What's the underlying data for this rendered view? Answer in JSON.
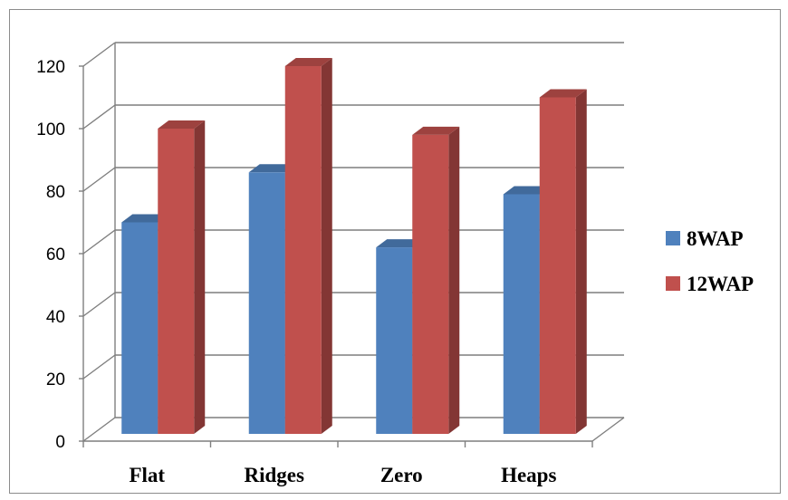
{
  "chart_data": {
    "type": "bar",
    "style": "3d-clustered-column",
    "categories": [
      "Flat",
      "Ridges",
      "Zero",
      "Heaps"
    ],
    "series": [
      {
        "name": "8WAP",
        "values": [
          70,
          86,
          62,
          79
        ],
        "color": "#4f81bd"
      },
      {
        "name": "12WAP",
        "values": [
          100,
          120,
          98,
          110
        ],
        "color": "#c0504d"
      }
    ],
    "title": "",
    "xlabel": "",
    "ylabel": "",
    "ylim": [
      0,
      120
    ],
    "yticks": [
      0,
      20,
      40,
      60,
      80,
      100,
      120
    ],
    "grid": true,
    "legend": "right"
  }
}
